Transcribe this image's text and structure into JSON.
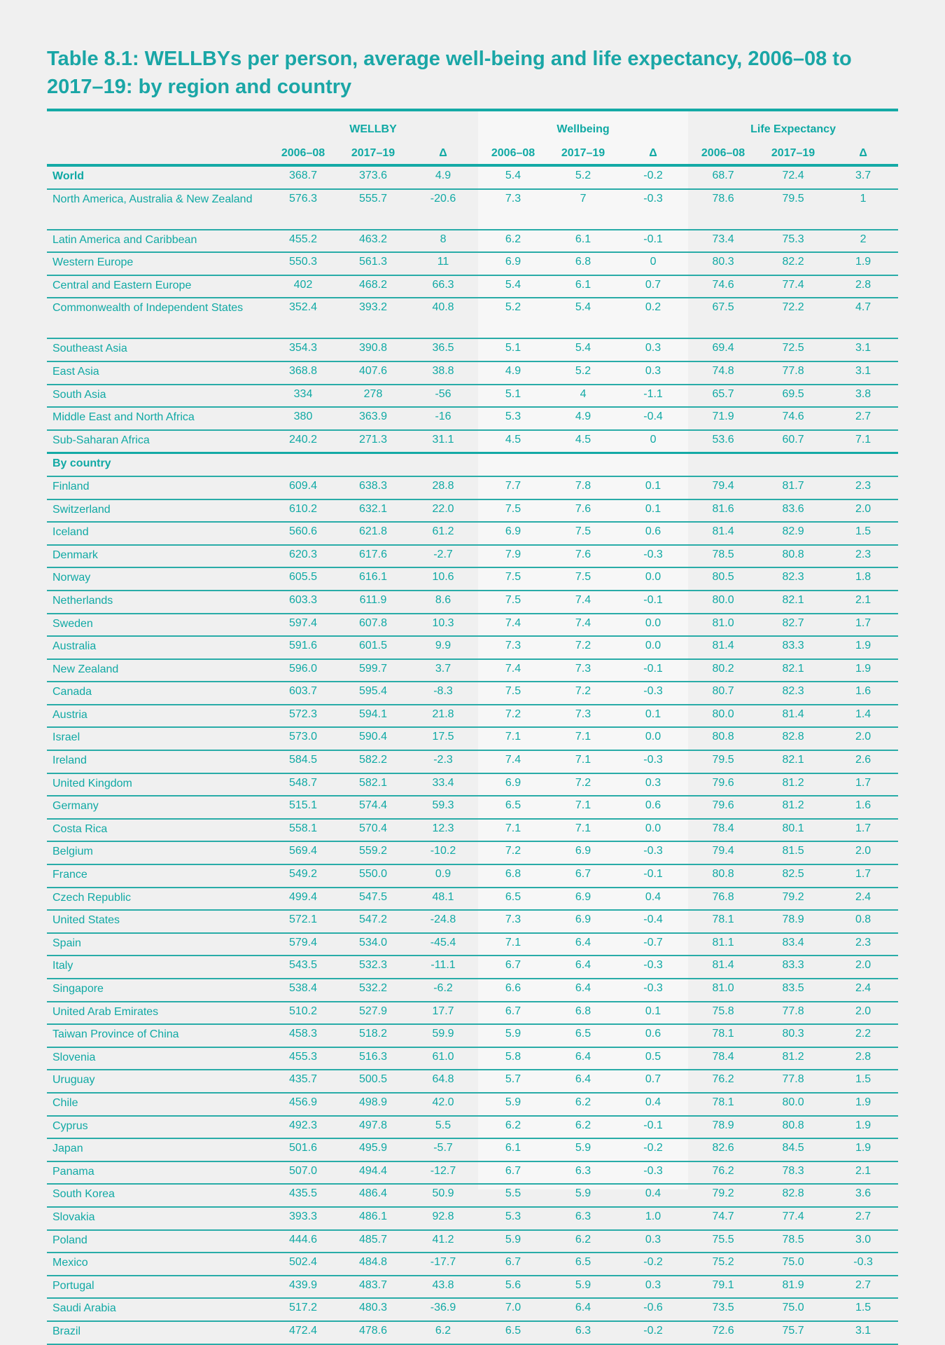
{
  "title": "Table 8.1: WELLBYs per person, average well-being and life expectancy, 2006–08 to 2017–19: by region and country",
  "groups": [
    "WELLBY",
    "Wellbeing",
    "Life Expectancy"
  ],
  "subheaders": [
    "2006–08",
    "2017–19",
    "Δ",
    "2006–08",
    "2017–19",
    "Δ",
    "2006–08",
    "2017–19",
    "Δ"
  ],
  "regions": [
    {
      "name": "World",
      "bold": true,
      "values": [
        "368.7",
        "373.6",
        "4.9",
        "5.4",
        "5.2",
        "-0.2",
        "68.7",
        "72.4",
        "3.7"
      ]
    },
    {
      "name": "North America, Australia & New Zealand",
      "two": true,
      "values": [
        "576.3",
        "555.7",
        "-20.6",
        "7.3",
        "7",
        "-0.3",
        "78.6",
        "79.5",
        "1"
      ]
    },
    {
      "name": "Latin America and Caribbean",
      "values": [
        "455.2",
        "463.2",
        "8",
        "6.2",
        "6.1",
        "-0.1",
        "73.4",
        "75.3",
        "2"
      ]
    },
    {
      "name": "Western Europe",
      "values": [
        "550.3",
        "561.3",
        "11",
        "6.9",
        "6.8",
        "0",
        "80.3",
        "82.2",
        "1.9"
      ]
    },
    {
      "name": "Central and Eastern Europe",
      "values": [
        "402",
        "468.2",
        "66.3",
        "5.4",
        "6.1",
        "0.7",
        "74.6",
        "77.4",
        "2.8"
      ]
    },
    {
      "name": "Commonwealth of Independent States",
      "two": true,
      "values": [
        "352.4",
        "393.2",
        "40.8",
        "5.2",
        "5.4",
        "0.2",
        "67.5",
        "72.2",
        "4.7"
      ]
    },
    {
      "name": "Southeast Asia",
      "values": [
        "354.3",
        "390.8",
        "36.5",
        "5.1",
        "5.4",
        "0.3",
        "69.4",
        "72.5",
        "3.1"
      ]
    },
    {
      "name": "East Asia",
      "values": [
        "368.8",
        "407.6",
        "38.8",
        "4.9",
        "5.2",
        "0.3",
        "74.8",
        "77.8",
        "3.1"
      ]
    },
    {
      "name": "South Asia",
      "values": [
        "334",
        "278",
        "-56",
        "5.1",
        "4",
        "-1.1",
        "65.7",
        "69.5",
        "3.8"
      ]
    },
    {
      "name": "Middle East and North Africa",
      "values": [
        "380",
        "363.9",
        "-16",
        "5.3",
        "4.9",
        "-0.4",
        "71.9",
        "74.6",
        "2.7"
      ]
    },
    {
      "name": "Sub-Saharan Africa",
      "sep": true,
      "values": [
        "240.2",
        "271.3",
        "31.1",
        "4.5",
        "4.5",
        "0",
        "53.6",
        "60.7",
        "7.1"
      ]
    }
  ],
  "country_heading": "By country",
  "countries": [
    {
      "name": "Finland",
      "values": [
        "609.4",
        "638.3",
        "28.8",
        "7.7",
        "7.8",
        "0.1",
        "79.4",
        "81.7",
        "2.3"
      ]
    },
    {
      "name": "Switzerland",
      "values": [
        "610.2",
        "632.1",
        "22.0",
        "7.5",
        "7.6",
        "0.1",
        "81.6",
        "83.6",
        "2.0"
      ]
    },
    {
      "name": "Iceland",
      "values": [
        "560.6",
        "621.8",
        "61.2",
        "6.9",
        "7.5",
        "0.6",
        "81.4",
        "82.9",
        "1.5"
      ]
    },
    {
      "name": "Denmark",
      "values": [
        "620.3",
        "617.6",
        "-2.7",
        "7.9",
        "7.6",
        "-0.3",
        "78.5",
        "80.8",
        "2.3"
      ]
    },
    {
      "name": "Norway",
      "values": [
        "605.5",
        "616.1",
        "10.6",
        "7.5",
        "7.5",
        "0.0",
        "80.5",
        "82.3",
        "1.8"
      ]
    },
    {
      "name": "Netherlands",
      "values": [
        "603.3",
        "611.9",
        "8.6",
        "7.5",
        "7.4",
        "-0.1",
        "80.0",
        "82.1",
        "2.1"
      ]
    },
    {
      "name": "Sweden",
      "values": [
        "597.4",
        "607.8",
        "10.3",
        "7.4",
        "7.4",
        "0.0",
        "81.0",
        "82.7",
        "1.7"
      ]
    },
    {
      "name": "Australia",
      "values": [
        "591.6",
        "601.5",
        "9.9",
        "7.3",
        "7.2",
        "0.0",
        "81.4",
        "83.3",
        "1.9"
      ]
    },
    {
      "name": "New Zealand",
      "values": [
        "596.0",
        "599.7",
        "3.7",
        "7.4",
        "7.3",
        "-0.1",
        "80.2",
        "82.1",
        "1.9"
      ]
    },
    {
      "name": "Canada",
      "values": [
        "603.7",
        "595.4",
        "-8.3",
        "7.5",
        "7.2",
        "-0.3",
        "80.7",
        "82.3",
        "1.6"
      ]
    },
    {
      "name": "Austria",
      "values": [
        "572.3",
        "594.1",
        "21.8",
        "7.2",
        "7.3",
        "0.1",
        "80.0",
        "81.4",
        "1.4"
      ]
    },
    {
      "name": "Israel",
      "values": [
        "573.0",
        "590.4",
        "17.5",
        "7.1",
        "7.1",
        "0.0",
        "80.8",
        "82.8",
        "2.0"
      ]
    },
    {
      "name": "Ireland",
      "values": [
        "584.5",
        "582.2",
        "-2.3",
        "7.4",
        "7.1",
        "-0.3",
        "79.5",
        "82.1",
        "2.6"
      ]
    },
    {
      "name": "United Kingdom",
      "values": [
        "548.7",
        "582.1",
        "33.4",
        "6.9",
        "7.2",
        "0.3",
        "79.6",
        "81.2",
        "1.7"
      ]
    },
    {
      "name": "Germany",
      "values": [
        "515.1",
        "574.4",
        "59.3",
        "6.5",
        "7.1",
        "0.6",
        "79.6",
        "81.2",
        "1.6"
      ]
    },
    {
      "name": "Costa Rica",
      "values": [
        "558.1",
        "570.4",
        "12.3",
        "7.1",
        "7.1",
        "0.0",
        "78.4",
        "80.1",
        "1.7"
      ]
    },
    {
      "name": "Belgium",
      "values": [
        "569.4",
        "559.2",
        "-10.2",
        "7.2",
        "6.9",
        "-0.3",
        "79.4",
        "81.5",
        "2.0"
      ]
    },
    {
      "name": "France",
      "values": [
        "549.2",
        "550.0",
        "0.9",
        "6.8",
        "6.7",
        "-0.1",
        "80.8",
        "82.5",
        "1.7"
      ]
    },
    {
      "name": "Czech Republic",
      "values": [
        "499.4",
        "547.5",
        "48.1",
        "6.5",
        "6.9",
        "0.4",
        "76.8",
        "79.2",
        "2.4"
      ]
    },
    {
      "name": "United States",
      "values": [
        "572.1",
        "547.2",
        "-24.8",
        "7.3",
        "6.9",
        "-0.4",
        "78.1",
        "78.9",
        "0.8"
      ]
    },
    {
      "name": "Spain",
      "values": [
        "579.4",
        "534.0",
        "-45.4",
        "7.1",
        "6.4",
        "-0.7",
        "81.1",
        "83.4",
        "2.3"
      ]
    },
    {
      "name": "Italy",
      "values": [
        "543.5",
        "532.3",
        "-11.1",
        "6.7",
        "6.4",
        "-0.3",
        "81.4",
        "83.3",
        "2.0"
      ]
    },
    {
      "name": "Singapore",
      "values": [
        "538.4",
        "532.2",
        "-6.2",
        "6.6",
        "6.4",
        "-0.3",
        "81.0",
        "83.5",
        "2.4"
      ]
    },
    {
      "name": "United Arab Emirates",
      "values": [
        "510.2",
        "527.9",
        "17.7",
        "6.7",
        "6.8",
        "0.1",
        "75.8",
        "77.8",
        "2.0"
      ]
    },
    {
      "name": "Taiwan Province of China",
      "values": [
        "458.3",
        "518.2",
        "59.9",
        "5.9",
        "6.5",
        "0.6",
        "78.1",
        "80.3",
        "2.2"
      ]
    },
    {
      "name": "Slovenia",
      "values": [
        "455.3",
        "516.3",
        "61.0",
        "5.8",
        "6.4",
        "0.5",
        "78.4",
        "81.2",
        "2.8"
      ]
    },
    {
      "name": "Uruguay",
      "values": [
        "435.7",
        "500.5",
        "64.8",
        "5.7",
        "6.4",
        "0.7",
        "76.2",
        "77.8",
        "1.5"
      ]
    },
    {
      "name": "Chile",
      "values": [
        "456.9",
        "498.9",
        "42.0",
        "5.9",
        "6.2",
        "0.4",
        "78.1",
        "80.0",
        "1.9"
      ]
    },
    {
      "name": "Cyprus",
      "values": [
        "492.3",
        "497.8",
        "5.5",
        "6.2",
        "6.2",
        "-0.1",
        "78.9",
        "80.8",
        "1.9"
      ]
    },
    {
      "name": "Japan",
      "values": [
        "501.6",
        "495.9",
        "-5.7",
        "6.1",
        "5.9",
        "-0.2",
        "82.6",
        "84.5",
        "1.9"
      ]
    },
    {
      "name": "Panama",
      "values": [
        "507.0",
        "494.4",
        "-12.7",
        "6.7",
        "6.3",
        "-0.3",
        "76.2",
        "78.3",
        "2.1"
      ]
    },
    {
      "name": "South Korea",
      "values": [
        "435.5",
        "486.4",
        "50.9",
        "5.5",
        "5.9",
        "0.4",
        "79.2",
        "82.8",
        "3.6"
      ]
    },
    {
      "name": "Slovakia",
      "values": [
        "393.3",
        "486.1",
        "92.8",
        "5.3",
        "6.3",
        "1.0",
        "74.7",
        "77.4",
        "2.7"
      ]
    },
    {
      "name": "Poland",
      "values": [
        "444.6",
        "485.7",
        "41.2",
        "5.9",
        "6.2",
        "0.3",
        "75.5",
        "78.5",
        "3.0"
      ]
    },
    {
      "name": "Mexico",
      "values": [
        "502.4",
        "484.8",
        "-17.7",
        "6.7",
        "6.5",
        "-0.2",
        "75.2",
        "75.0",
        "-0.3"
      ]
    },
    {
      "name": "Portugal",
      "values": [
        "439.9",
        "483.7",
        "43.8",
        "5.6",
        "5.9",
        "0.3",
        "79.1",
        "81.9",
        "2.7"
      ]
    },
    {
      "name": "Saudi Arabia",
      "values": [
        "517.2",
        "480.3",
        "-36.9",
        "7.0",
        "6.4",
        "-0.6",
        "73.5",
        "75.0",
        "1.5"
      ]
    },
    {
      "name": "Brazil",
      "values": [
        "472.4",
        "478.6",
        "6.2",
        "6.5",
        "6.3",
        "-0.2",
        "72.6",
        "75.7",
        "3.1"
      ]
    }
  ]
}
